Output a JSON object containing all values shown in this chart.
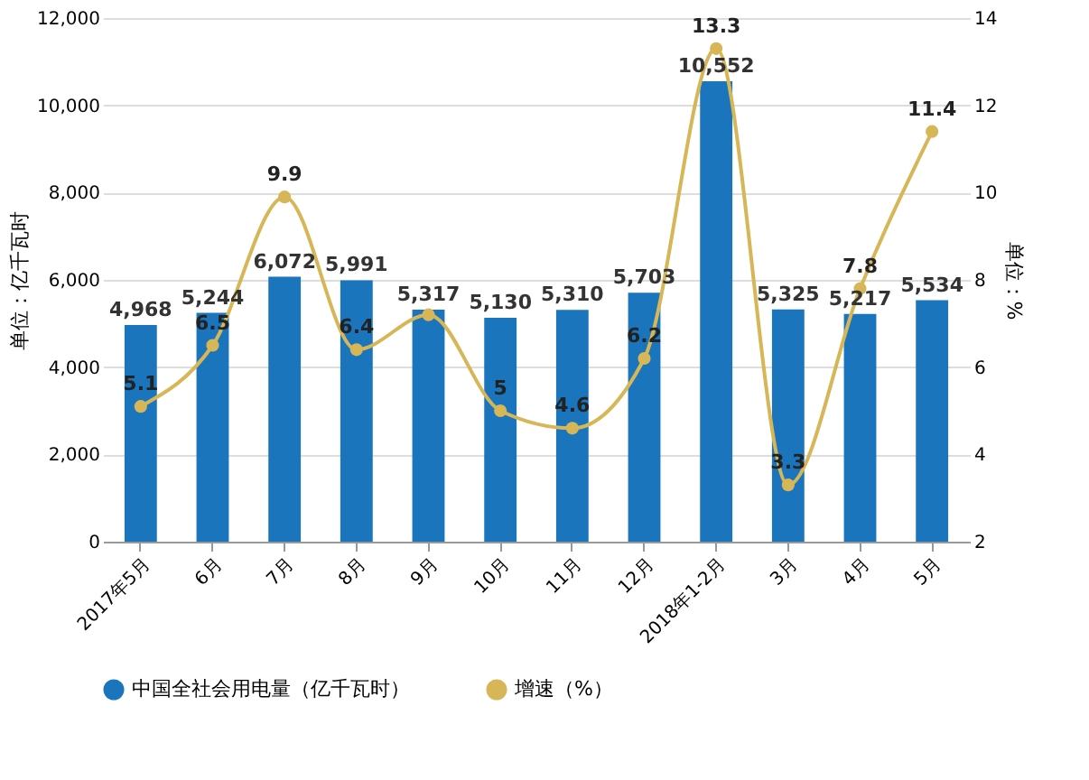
{
  "chart_data": {
    "type": "bar",
    "categories": [
      "2017年5月",
      "6月",
      "7月",
      "8月",
      "9月",
      "10月",
      "11月",
      "12月",
      "2018年1-2月",
      "3月",
      "4月",
      "5月"
    ],
    "ylabel": "单位：亿千瓦时",
    "y2label": "单位：%",
    "ylim": [
      0,
      12000
    ],
    "yticks": [
      0,
      {
        "value": 2000,
        "label": "2,000"
      },
      {
        "value": 4000,
        "label": "4,000"
      },
      {
        "value": 6000,
        "label": "6,000"
      },
      {
        "value": 8000,
        "label": "8,000"
      },
      {
        "value": 10000,
        "label": "10,000"
      },
      {
        "value": 12000,
        "label": "12,000"
      }
    ],
    "y2lim": [
      2,
      14
    ],
    "y2ticks": [
      2,
      4,
      6,
      8,
      10,
      12,
      14
    ],
    "grid": "y",
    "legend": "bottom",
    "marker": "circle",
    "series": [
      {
        "name": "中国全社会用电量（亿千瓦时）",
        "color": "#1a75bc",
        "values": [
          4968,
          5244,
          6072,
          5991,
          5317,
          5130,
          5310,
          5703,
          10552,
          5325,
          5217,
          5534
        ],
        "value_labels": [
          "4,968",
          "5,244",
          "6,072",
          "5,991",
          "5,317",
          "5,130",
          "5,310",
          "5,703",
          "10,552",
          "5,325",
          "5,217",
          "5,534"
        ]
      },
      {
        "name": "增速（%）",
        "type": "line",
        "axis": "y2",
        "color": "#d6b656",
        "values": [
          5.1,
          6.5,
          9.9,
          6.4,
          7.2,
          5,
          4.6,
          6.2,
          13.3,
          3.3,
          7.8,
          11.4
        ],
        "value_labels": [
          "5.1",
          "6.5",
          "9.9",
          "6.4",
          null,
          "5",
          "4.6",
          "6.2",
          "13.3",
          "3.3",
          "7.8",
          "11.4"
        ]
      }
    ]
  }
}
